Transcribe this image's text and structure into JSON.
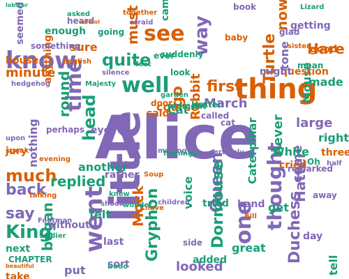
{
  "colors": {
    "background": "#ffffff",
    "purple": "#8068b6",
    "teal": "#1a9e77",
    "orange": "#d95f02"
  },
  "words": [
    {
      "text": "Alice",
      "color": "purple",
      "emphasis": 1.0
    },
    {
      "text": "little",
      "color": "purple",
      "emphasis": 0.5
    },
    {
      "text": "know",
      "color": "purple",
      "emphasis": 0.4
    },
    {
      "text": "thing",
      "color": "orange",
      "emphasis": 0.4
    },
    {
      "text": "went",
      "color": "purple",
      "emphasis": 0.4
    },
    {
      "text": "time",
      "color": "purple",
      "emphasis": 0.4
    },
    {
      "text": "well",
      "color": "teal",
      "emphasis": 0.35
    },
    {
      "text": "see",
      "color": "orange",
      "emphasis": 0.35
    },
    {
      "text": "way",
      "color": "purple",
      "emphasis": 0.35
    },
    {
      "text": "Queen",
      "color": "purple",
      "emphasis": 0.35
    },
    {
      "text": "thought",
      "color": "purple",
      "emphasis": 0.35
    },
    {
      "text": "one",
      "color": "purple",
      "emphasis": 0.35
    },
    {
      "text": "head",
      "color": "teal",
      "emphasis": 0.3
    },
    {
      "text": "much",
      "color": "orange",
      "emphasis": 0.3
    },
    {
      "text": "King",
      "color": "teal",
      "emphasis": 0.3
    },
    {
      "text": "quite",
      "color": "teal",
      "emphasis": 0.3
    },
    {
      "text": "Turtle",
      "color": "orange",
      "emphasis": 0.3
    },
    {
      "text": "Gryphon",
      "color": "teal",
      "emphasis": 0.3
    },
    {
      "text": "Duchess",
      "color": "purple",
      "emphasis": 0.3
    },
    {
      "text": "Dormouse",
      "color": "teal",
      "emphasis": 0.25
    },
    {
      "text": "Hatter",
      "color": "purple",
      "emphasis": 0.25
    },
    {
      "text": "began",
      "color": "teal",
      "emphasis": 0.25
    },
    {
      "text": "say",
      "color": "purple",
      "emphasis": 0.25
    },
    {
      "text": "back",
      "color": "purple",
      "emphasis": 0.25
    },
    {
      "text": "replied",
      "color": "teal",
      "emphasis": 0.25
    },
    {
      "text": "first",
      "color": "orange",
      "emphasis": 0.25
    },
    {
      "text": "must",
      "color": "orange",
      "emphasis": 0.25
    },
    {
      "text": "Rabbit",
      "color": "orange",
      "emphasis": 0.25
    },
    {
      "text": "Mock",
      "color": "orange",
      "emphasis": 0.25
    },
    {
      "text": "looked",
      "color": "purple",
      "emphasis": 0.25
    },
    {
      "text": "voice",
      "color": "teal",
      "emphasis": 0.25
    },
    {
      "text": "now",
      "color": "orange",
      "emphasis": 0.25
    },
    {
      "text": "great",
      "color": "teal",
      "emphasis": 0.25
    },
    {
      "text": "round",
      "color": "teal",
      "emphasis": 0.2
    },
    {
      "text": "minute",
      "color": "orange",
      "emphasis": 0.2
    },
    {
      "text": "March",
      "color": "purple",
      "emphasis": 0.2
    },
    {
      "text": "course",
      "color": "orange",
      "emphasis": 0.2
    },
    {
      "text": "never",
      "color": "teal",
      "emphasis": 0.2
    },
    {
      "text": "come",
      "color": "purple",
      "emphasis": 0.2
    },
    {
      "text": "Mouse",
      "color": "teal",
      "emphasis": 0.2
    },
    {
      "text": "Hare",
      "color": "orange",
      "emphasis": 0.2
    },
    {
      "text": "large",
      "color": "purple",
      "emphasis": 0.2
    },
    {
      "text": "right",
      "color": "teal",
      "emphasis": 0.2
    },
    {
      "text": "Caterpillar",
      "color": "teal",
      "emphasis": 0.2
    },
    {
      "text": "cried",
      "color": "orange",
      "emphasis": 0.2
    },
    {
      "text": "three",
      "color": "orange",
      "emphasis": 0.2
    },
    {
      "text": "made",
      "color": "teal",
      "emphasis": 0.2
    },
    {
      "text": "seemed",
      "color": "purple",
      "emphasis": 0.2
    },
    {
      "text": "nothing",
      "color": "purple",
      "emphasis": 0.2
    },
    {
      "text": "Cat",
      "color": "teal",
      "emphasis": 0.2
    },
    {
      "text": "go",
      "color": "orange",
      "emphasis": 0.2
    },
    {
      "text": "tone",
      "color": "purple",
      "emphasis": 0.2
    },
    {
      "text": "sure",
      "color": "orange",
      "emphasis": 0.2
    },
    {
      "text": "next",
      "color": "teal",
      "emphasis": 0.2
    },
    {
      "text": "get",
      "color": "teal",
      "emphasis": 0.2
    },
    {
      "text": "sat",
      "color": "purple",
      "emphasis": 0.2
    },
    {
      "text": "tell",
      "color": "teal",
      "emphasis": 0.2
    },
    {
      "text": "put",
      "color": "purple",
      "emphasis": 0.2
    },
    {
      "text": "take",
      "color": "orange",
      "emphasis": 0.2
    },
    {
      "text": "rather",
      "color": "purple",
      "emphasis": 0.15
    },
    {
      "text": "felt",
      "color": "teal",
      "emphasis": 0.15
    },
    {
      "text": "last",
      "color": "purple",
      "emphasis": 0.15
    },
    {
      "text": "came",
      "color": "teal",
      "emphasis": 0.15
    },
    {
      "text": "another",
      "color": "teal",
      "emphasis": 0.15
    },
    {
      "text": "jury",
      "color": "orange",
      "emphasis": 0.15
    },
    {
      "text": "house",
      "color": "orange",
      "emphasis": 0.15
    },
    {
      "text": "enough",
      "color": "teal",
      "emphasis": 0.15
    },
    {
      "text": "question",
      "color": "orange",
      "emphasis": 0.15
    },
    {
      "text": "without",
      "color": "purple",
      "emphasis": 0.15
    },
    {
      "text": "getting",
      "color": "purple",
      "emphasis": 0.15
    },
    {
      "text": "anything",
      "color": "orange",
      "emphasis": 0.15
    },
    {
      "text": "sort",
      "color": "purple",
      "emphasis": 0.15
    },
    {
      "text": "White",
      "color": "teal",
      "emphasis": 0.15
    },
    {
      "text": "day",
      "color": "purple",
      "emphasis": 0.15
    },
    {
      "text": "eye",
      "color": "purple",
      "emphasis": 0.15
    },
    {
      "text": "perhaps",
      "color": "purple",
      "emphasis": 0.12
    },
    {
      "text": "side",
      "color": "purple",
      "emphasis": 0.12
    },
    {
      "text": "tried",
      "color": "teal",
      "emphasis": 0.12
    },
    {
      "text": "added",
      "color": "teal",
      "emphasis": 0.12
    },
    {
      "text": "good",
      "color": "orange",
      "emphasis": 0.12
    },
    {
      "text": "hand",
      "color": "purple",
      "emphasis": 0.12
    },
    {
      "text": "might",
      "color": "purple",
      "emphasis": 0.12
    },
    {
      "text": "going",
      "color": "teal",
      "emphasis": 0.12
    },
    {
      "text": "said",
      "color": "orange",
      "emphasis": 0.12
    },
    {
      "text": "look",
      "color": "teal",
      "emphasis": 0.12
    },
    {
      "text": "moment",
      "color": "teal",
      "emphasis": 0.1
    },
    {
      "text": "called",
      "color": "purple",
      "emphasis": 0.1
    },
    {
      "text": "remarked",
      "color": "purple",
      "emphasis": 0.1
    },
    {
      "text": "Oh",
      "color": "teal",
      "emphasis": 0.1
    },
    {
      "text": "mean",
      "color": "teal",
      "emphasis": 0.1
    },
    {
      "text": "glad",
      "color": "purple",
      "emphasis": 0.1
    },
    {
      "text": "something",
      "color": "purple",
      "emphasis": 0.1
    },
    {
      "text": "baby",
      "color": "orange",
      "emphasis": 0.1
    },
    {
      "text": "cat",
      "color": "purple",
      "emphasis": 0.1
    },
    {
      "text": "ever",
      "color": "teal",
      "emphasis": 0.1
    },
    {
      "text": "suddenly",
      "color": "teal",
      "emphasis": 0.1
    },
    {
      "text": "book",
      "color": "purple",
      "emphasis": 0.1
    },
    {
      "text": "door",
      "color": "orange",
      "emphasis": 0.1
    },
    {
      "text": "Hatter",
      "color": "teal",
      "emphasis": 0.1
    },
    {
      "text": "Knave",
      "color": "orange",
      "emphasis": 0.1
    },
    {
      "text": "heard",
      "color": "purple",
      "emphasis": 0.1
    },
    {
      "text": "asked",
      "color": "teal",
      "emphasis": 0.1
    },
    {
      "text": "hedgehog",
      "color": "purple",
      "emphasis": 0.1
    },
    {
      "text": "CHAPTER",
      "color": "teal",
      "emphasis": 0.1
    },
    {
      "text": "away",
      "color": "purple",
      "emphasis": 0.1
    },
    {
      "text": "certainly",
      "color": "purple",
      "emphasis": 0.1
    },
    {
      "text": "upon",
      "color": "purple",
      "emphasis": 0.1
    },
    {
      "text": "wonder",
      "color": "teal",
      "emphasis": 0.1
    },
    {
      "text": "speak",
      "color": "orange",
      "emphasis": 0.1
    },
    {
      "text": "soldier",
      "color": "teal",
      "emphasis": 0.1
    },
    {
      "text": "knew",
      "color": "teal",
      "emphasis": 0.1
    },
    {
      "text": "making",
      "color": "purple",
      "emphasis": 0.08
    },
    {
      "text": "afraid",
      "color": "purple",
      "emphasis": 0.08
    },
    {
      "text": "half",
      "color": "purple",
      "emphasis": 0.08
    },
    {
      "text": "feet",
      "color": "teal",
      "emphasis": 0.08
    },
    {
      "text": "together",
      "color": "orange",
      "emphasis": 0.08
    },
    {
      "text": "Lizard",
      "color": "teal",
      "emphasis": 0.08
    },
    {
      "text": "garden",
      "color": "teal",
      "emphasis": 0.08
    },
    {
      "text": "silence",
      "color": "purple",
      "emphasis": 0.08
    },
    {
      "text": "talking",
      "color": "orange",
      "emphasis": 0.08
    },
    {
      "text": "Footman",
      "color": "purple",
      "emphasis": 0.08
    },
    {
      "text": "flamingo",
      "color": "teal",
      "emphasis": 0.08
    },
    {
      "text": "children",
      "color": "purple",
      "emphasis": 0.08
    },
    {
      "text": "shook",
      "color": "purple",
      "emphasis": 0.08
    },
    {
      "text": "Bill",
      "color": "orange",
      "emphasis": 0.08
    },
    {
      "text": "Dodo",
      "color": "teal",
      "emphasis": 0.08
    },
    {
      "text": "Soup",
      "color": "orange",
      "emphasis": 0.08
    },
    {
      "text": "Majesty",
      "color": "teal",
      "emphasis": 0.08
    },
    {
      "text": "English",
      "color": "orange",
      "emphasis": 0.08
    },
    {
      "text": "school",
      "color": "orange",
      "emphasis": 0.06
    },
    {
      "text": "sister",
      "color": "orange",
      "emphasis": 0.06
    },
    {
      "text": "lobster",
      "color": "teal",
      "emphasis": 0.06
    },
    {
      "text": "evening",
      "color": "orange",
      "emphasis": 0.06
    },
    {
      "text": "beautiful",
      "color": "orange",
      "emphasis": 0.06
    },
    {
      "text": "trembling",
      "color": "purple",
      "emphasis": 0.06
    },
    {
      "text": "curious",
      "color": "teal",
      "emphasis": 0.06
    },
    {
      "text": "generally",
      "color": "purple",
      "emphasis": 0.06
    },
    {
      "text": "mushroom",
      "color": "teal",
      "emphasis": 0.06
    },
    {
      "text": "remembered",
      "color": "purple",
      "emphasis": 0.06
    }
  ]
}
